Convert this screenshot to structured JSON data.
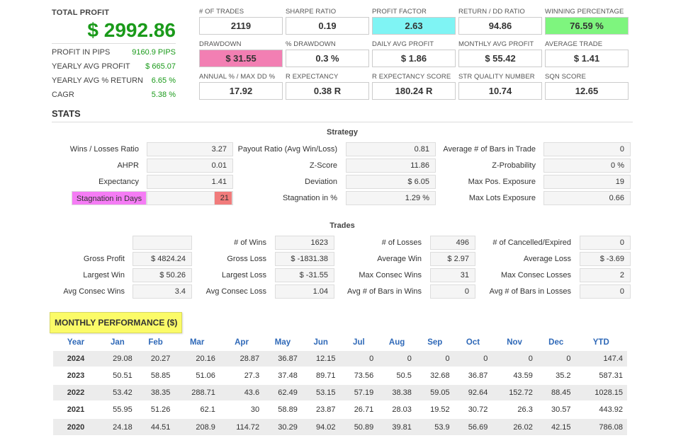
{
  "total_profit": {
    "label": "TOTAL PROFIT",
    "value": "$ 2992.86",
    "rows": [
      {
        "label": "PROFIT IN PIPS",
        "value": "9160.9 PIPS"
      },
      {
        "label": "YEARLY AVG PROFIT",
        "value": "$ 665.07"
      },
      {
        "label": "YEARLY AVG % RETURN",
        "value": "6.65 %"
      },
      {
        "label": "CAGR",
        "value": "5.38 %"
      }
    ]
  },
  "metrics": [
    {
      "label": "# OF TRADES",
      "value": "2119",
      "highlight": ""
    },
    {
      "label": "SHARPE RATIO",
      "value": "0.19",
      "highlight": ""
    },
    {
      "label": "PROFIT FACTOR",
      "value": "2.63",
      "highlight": "cyan"
    },
    {
      "label": "RETURN / DD RATIO",
      "value": "94.86",
      "highlight": ""
    },
    {
      "label": "WINNING PERCENTAGE",
      "value": "76.59 %",
      "highlight": "green"
    },
    {
      "label": "DRAWDOWN",
      "value": "$ 31.55",
      "highlight": "pink"
    },
    {
      "label": "% DRAWDOWN",
      "value": "0.3 %",
      "highlight": ""
    },
    {
      "label": "DAILY AVG PROFIT",
      "value": "$ 1.86",
      "highlight": ""
    },
    {
      "label": "MONTHLY AVG PROFIT",
      "value": "$ 55.42",
      "highlight": ""
    },
    {
      "label": "AVERAGE TRADE",
      "value": "$ 1.41",
      "highlight": ""
    },
    {
      "label": "ANNUAL % / MAX DD %",
      "value": "17.92",
      "highlight": ""
    },
    {
      "label": "R EXPECTANCY",
      "value": "0.38 R",
      "highlight": ""
    },
    {
      "label": "R EXPECTANCY SCORE",
      "value": "180.24 R",
      "highlight": ""
    },
    {
      "label": "STR QUALITY NUMBER",
      "value": "10.74",
      "highlight": ""
    },
    {
      "label": "SQN SCORE",
      "value": "12.65",
      "highlight": ""
    }
  ],
  "stats_title": "STATS",
  "strategy": {
    "title": "Strategy",
    "rows": [
      [
        {
          "label": "Wins / Losses Ratio",
          "value": "3.27"
        },
        {
          "label": "Payout Ratio (Avg Win/Loss)",
          "value": "0.81"
        },
        {
          "label": "Average # of Bars in Trade",
          "value": "0"
        }
      ],
      [
        {
          "label": "AHPR",
          "value": "0.01"
        },
        {
          "label": "Z-Score",
          "value": "11.86"
        },
        {
          "label": "Z-Probability",
          "value": "0 %"
        }
      ],
      [
        {
          "label": "Expectancy",
          "value": "1.41"
        },
        {
          "label": "Deviation",
          "value": "$ 6.05"
        },
        {
          "label": "Max Pos. Exposure",
          "value": "19"
        }
      ],
      [
        {
          "label": "Stagnation in Days",
          "value": "21"
        },
        {
          "label": "Stagnation in %",
          "value": "1.29 %"
        },
        {
          "label": "Max Lots Exposure",
          "value": "0.66"
        }
      ]
    ]
  },
  "trades": {
    "title": "Trades",
    "rows": [
      [
        {
          "label": "",
          "value": ""
        },
        {
          "label": "# of Wins",
          "value": "1623"
        },
        {
          "label": "# of Losses",
          "value": "496"
        },
        {
          "label": "# of Cancelled/Expired",
          "value": "0"
        }
      ],
      [
        {
          "label": "Gross Profit",
          "value": "$ 4824.24"
        },
        {
          "label": "Gross Loss",
          "value": "$ -1831.38"
        },
        {
          "label": "Average Win",
          "value": "$ 2.97"
        },
        {
          "label": "Average Loss",
          "value": "$ -3.69"
        }
      ],
      [
        {
          "label": "Largest Win",
          "value": "$ 50.26"
        },
        {
          "label": "Largest Loss",
          "value": "$ -31.55"
        },
        {
          "label": "Max Consec Wins",
          "value": "31"
        },
        {
          "label": "Max Consec Losses",
          "value": "2"
        }
      ],
      [
        {
          "label": "Avg Consec Wins",
          "value": "3.4"
        },
        {
          "label": "Avg Consec Loss",
          "value": "1.04"
        },
        {
          "label": "Avg # of Bars in Wins",
          "value": "0"
        },
        {
          "label": "Avg # of Bars in Losses",
          "value": "0"
        }
      ]
    ]
  },
  "monthly": {
    "title": "MONTHLY PERFORMANCE ($)",
    "headers": [
      "Year",
      "Jan",
      "Feb",
      "Mar",
      "Apr",
      "May",
      "Jun",
      "Jul",
      "Aug",
      "Sep",
      "Oct",
      "Nov",
      "Dec",
      "YTD"
    ],
    "rows": [
      [
        "2024",
        "29.08",
        "20.27",
        "20.16",
        "28.87",
        "36.87",
        "12.15",
        "0",
        "0",
        "0",
        "0",
        "0",
        "0",
        "147.4"
      ],
      [
        "2023",
        "50.51",
        "58.85",
        "51.06",
        "27.3",
        "37.48",
        "89.71",
        "73.56",
        "50.5",
        "32.68",
        "36.87",
        "43.59",
        "35.2",
        "587.31"
      ],
      [
        "2022",
        "53.42",
        "38.35",
        "288.71",
        "43.6",
        "62.49",
        "53.15",
        "57.19",
        "38.38",
        "59.05",
        "92.64",
        "152.72",
        "88.45",
        "1028.15"
      ],
      [
        "2021",
        "55.95",
        "51.26",
        "62.1",
        "30",
        "58.89",
        "23.87",
        "26.71",
        "28.03",
        "19.52",
        "30.72",
        "26.3",
        "30.57",
        "443.92"
      ],
      [
        "2020",
        "24.18",
        "44.51",
        "208.9",
        "114.72",
        "30.29",
        "94.02",
        "50.89",
        "39.81",
        "53.9",
        "56.69",
        "26.02",
        "42.15",
        "786.08"
      ]
    ]
  }
}
